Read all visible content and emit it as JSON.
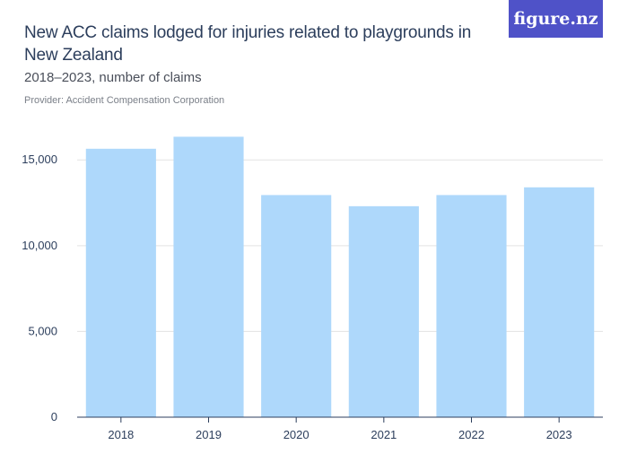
{
  "header": {
    "title": "New ACC claims lodged for injuries related to playgrounds in New Zealand",
    "subtitle": "2018–2023, number of claims",
    "provider": "Provider: Accident Compensation Corporation",
    "logo_text": "figure.nz"
  },
  "colors": {
    "bar": "#aed8fb",
    "grid": "#e3e3e3",
    "axis": "#2c3e5c",
    "logo_bg": "#4f52c8"
  },
  "chart_data": {
    "type": "bar",
    "categories": [
      "2018",
      "2019",
      "2020",
      "2021",
      "2022",
      "2023"
    ],
    "values": [
      15650,
      16350,
      12950,
      12300,
      12950,
      13400
    ],
    "ylim": [
      0,
      17000
    ],
    "yticks": [
      0,
      5000,
      10000,
      15000
    ],
    "ytick_labels": [
      "0",
      "5,000",
      "10,000",
      "15,000"
    ],
    "xlabel": "",
    "ylabel": "",
    "grid": true
  }
}
